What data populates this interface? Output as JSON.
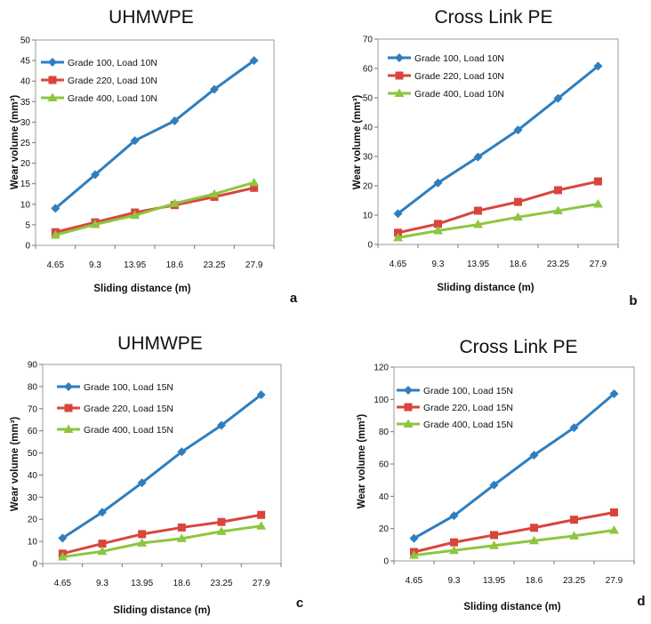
{
  "chart_data": [
    {
      "type": "line",
      "title": "UHMWPE",
      "panel_label": "a",
      "xlabel": "Sliding distance (m)",
      "ylabel": "Wear volume (mm³)",
      "categories": [
        "4.65",
        "9.3",
        "13.95",
        "18.6",
        "23.25",
        "27.9"
      ],
      "ylim": [
        0,
        50
      ],
      "yticks": [
        0,
        5,
        10,
        15,
        20,
        25,
        30,
        35,
        40,
        45,
        50
      ],
      "legend_position": "top-left",
      "grid": false,
      "series": [
        {
          "name": "Grade 100, Load 10N",
          "color": "#2e7ebf",
          "marker": "diamond",
          "values": [
            9,
            17.2,
            25.5,
            30.3,
            38,
            45
          ]
        },
        {
          "name": "Grade 220, Load 10N",
          "color": "#d9453d",
          "marker": "square",
          "values": [
            3.2,
            5.6,
            8,
            9.8,
            11.8,
            14
          ]
        },
        {
          "name": "Grade 400, Load 10N",
          "color": "#8dc63f",
          "marker": "triangle",
          "values": [
            2.5,
            5.1,
            7.3,
            10.2,
            12.5,
            15.3
          ]
        }
      ]
    },
    {
      "type": "line",
      "title": "Cross Link PE",
      "panel_label": "b",
      "xlabel": "Sliding distance (m)",
      "ylabel": "Wear volume (mm³)",
      "categories": [
        "4.65",
        "9.3",
        "13.95",
        "18.6",
        "23.25",
        "27.9"
      ],
      "ylim": [
        0,
        70
      ],
      "yticks": [
        0,
        10,
        20,
        30,
        40,
        50,
        60,
        70
      ],
      "legend_position": "top-left",
      "grid": false,
      "series": [
        {
          "name": "Grade 100, Load 10N",
          "color": "#2e7ebf",
          "marker": "diamond",
          "values": [
            10.5,
            21,
            29.8,
            39,
            49.8,
            60.8
          ]
        },
        {
          "name": "Grade 220, Load 10N",
          "color": "#d9453d",
          "marker": "square",
          "values": [
            4,
            7,
            11.5,
            14.5,
            18.5,
            21.5
          ]
        },
        {
          "name": "Grade 400, Load 10N",
          "color": "#8dc63f",
          "marker": "triangle",
          "values": [
            2.3,
            4.7,
            6.8,
            9.3,
            11.5,
            13.8
          ]
        }
      ]
    },
    {
      "type": "line",
      "title": "UHMWPE",
      "panel_label": "c",
      "xlabel": "Sliding distance (m)",
      "ylabel": "Wear volume (mm³)",
      "categories": [
        "4.65",
        "9.3",
        "13.95",
        "18.6",
        "23.25",
        "27.9"
      ],
      "ylim": [
        0,
        90
      ],
      "yticks": [
        0,
        10,
        20,
        30,
        40,
        50,
        60,
        70,
        80,
        90
      ],
      "legend_position": "top-left",
      "grid": false,
      "series": [
        {
          "name": "Grade 100, Load 15N",
          "color": "#2e7ebf",
          "marker": "diamond",
          "values": [
            11.5,
            23.2,
            36.5,
            50.5,
            62.5,
            76.3
          ]
        },
        {
          "name": "Grade 220, Load 15N",
          "color": "#d9453d",
          "marker": "square",
          "values": [
            4.5,
            9,
            13.3,
            16.3,
            18.8,
            22
          ]
        },
        {
          "name": "Grade 400, Load 15N",
          "color": "#8dc63f",
          "marker": "triangle",
          "values": [
            3,
            5.5,
            9.3,
            11.3,
            14.5,
            17
          ]
        }
      ]
    },
    {
      "type": "line",
      "title": "Cross Link PE",
      "panel_label": "d",
      "xlabel": "Sliding distance (m)",
      "ylabel": "Wear volume (mm³)",
      "categories": [
        "4.65",
        "9.3",
        "13.95",
        "18.6",
        "23.25",
        "27.9"
      ],
      "ylim": [
        0,
        120
      ],
      "yticks": [
        0,
        20,
        40,
        60,
        80,
        100,
        120
      ],
      "legend_position": "top-left",
      "grid": false,
      "series": [
        {
          "name": "Grade 100, Load 15N",
          "color": "#2e7ebf",
          "marker": "diamond",
          "values": [
            14,
            28,
            47,
            65.5,
            82.5,
            103.5
          ]
        },
        {
          "name": "Grade 220, Load 15N",
          "color": "#d9453d",
          "marker": "square",
          "values": [
            5.5,
            11.5,
            16,
            20.5,
            25.5,
            30
          ]
        },
        {
          "name": "Grade 400, Load 15N",
          "color": "#8dc63f",
          "marker": "triangle",
          "values": [
            3.5,
            6.5,
            9.5,
            12.5,
            15.5,
            19
          ]
        }
      ]
    }
  ]
}
